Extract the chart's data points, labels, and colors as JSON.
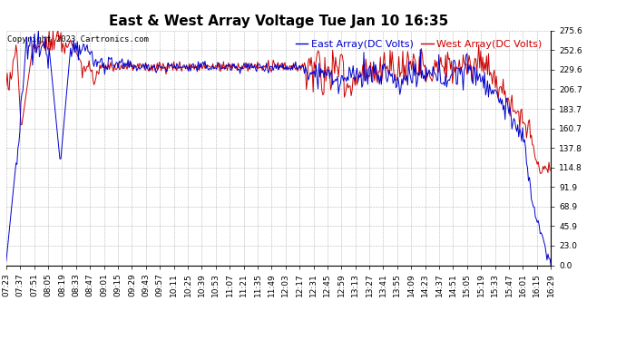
{
  "title": "East & West Array Voltage Tue Jan 10 16:35",
  "copyright": "Copyright 2023 Cartronics.com",
  "legend_east": "East Array(DC Volts)",
  "legend_west": "West Array(DC Volts)",
  "east_color": "#0000cc",
  "west_color": "#cc0000",
  "bg_color": "#ffffff",
  "plot_bg_color": "#ffffff",
  "grid_color": "#888888",
  "ylim": [
    0.0,
    275.6
  ],
  "yticks": [
    0.0,
    23.0,
    45.9,
    68.9,
    91.9,
    114.8,
    137.8,
    160.7,
    183.7,
    206.7,
    229.6,
    252.6,
    275.6
  ],
  "x_labels": [
    "07:23",
    "07:37",
    "07:51",
    "08:05",
    "08:19",
    "08:33",
    "08:47",
    "09:01",
    "09:15",
    "09:29",
    "09:43",
    "09:57",
    "10:11",
    "10:25",
    "10:39",
    "10:53",
    "11:07",
    "11:21",
    "11:35",
    "11:49",
    "12:03",
    "12:17",
    "12:31",
    "12:45",
    "12:59",
    "13:13",
    "13:27",
    "13:41",
    "13:55",
    "14:09",
    "14:23",
    "14:37",
    "14:51",
    "15:05",
    "15:19",
    "15:33",
    "15:47",
    "16:01",
    "16:15",
    "16:29"
  ],
  "title_fontsize": 11,
  "tick_fontsize": 6.5,
  "legend_fontsize": 8,
  "copyright_fontsize": 6.5,
  "linewidth": 0.7
}
